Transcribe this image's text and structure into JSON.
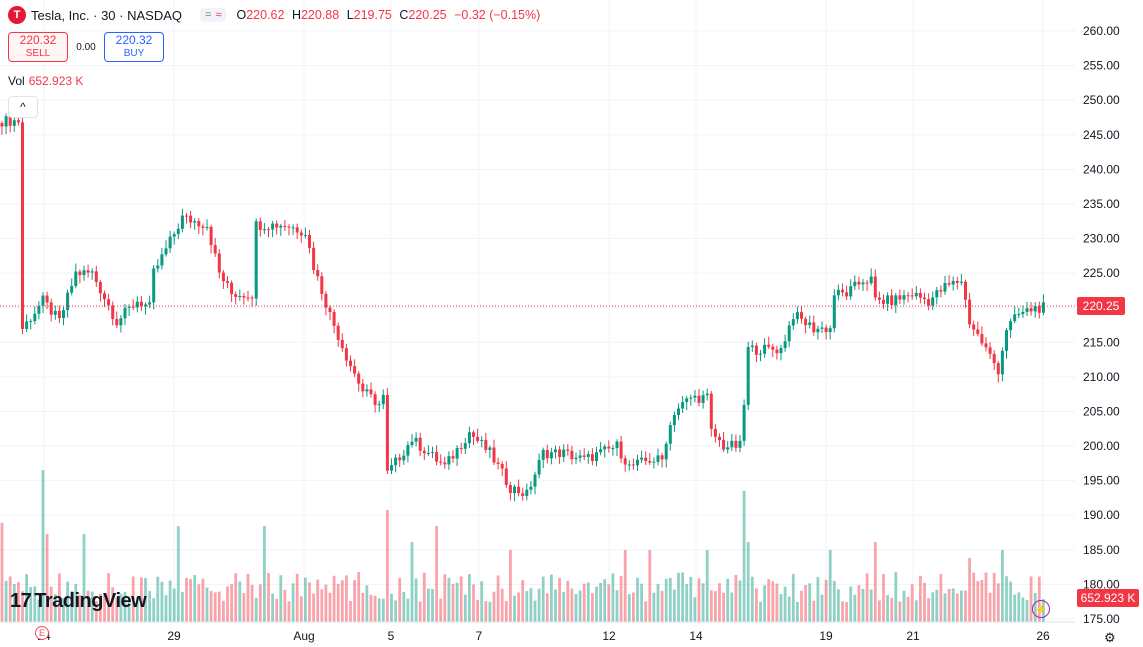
{
  "header": {
    "logo_letter": "T",
    "title": "Tesla, Inc. · 30 · NASDAQ",
    "pill_left": "=",
    "pill_right": "≈",
    "o_label": "O",
    "o_value": "220.62",
    "h_label": "H",
    "h_value": "220.88",
    "l_label": "L",
    "l_value": "219.75",
    "c_label": "C",
    "c_value": "220.25",
    "change": "−0.32 (−0.15%)"
  },
  "trade": {
    "sell_price": "220.32",
    "sell_label": "SELL",
    "spread": "0.00",
    "buy_price": "220.32",
    "buy_label": "BUY"
  },
  "volume_legend": {
    "label": "Vol",
    "value": "652.923 K"
  },
  "collapse_icon": "^",
  "brand": {
    "mark": "17",
    "name": "TradingView"
  },
  "earnings_marker": "E",
  "colors": {
    "up": "#089981",
    "down": "#f23645",
    "grid": "#f0f3fa",
    "last_price_line": "#f23645"
  },
  "chart_data": {
    "type": "candlestick",
    "symbol": "Tesla, Inc.",
    "interval": "30",
    "exchange": "NASDAQ",
    "y_range": [
      175,
      262
    ],
    "y_ticks": [
      "260.00",
      "255.00",
      "250.00",
      "245.00",
      "240.00",
      "235.00",
      "230.00",
      "225.00",
      "220.00",
      "215.00",
      "210.00",
      "205.00",
      "200.00",
      "195.00",
      "190.00",
      "185.00",
      "180.00",
      "175.00"
    ],
    "x_ticks": [
      "24",
      "29",
      "Aug",
      "5",
      "7",
      "12",
      "14",
      "19",
      "21",
      "26"
    ],
    "last_price": "220.25",
    "last_volume": "652.923 K",
    "price_keypoints": [
      [
        0,
        247
      ],
      [
        3,
        247
      ],
      [
        4,
        247
      ],
      [
        5,
        217
      ],
      [
        10,
        221
      ],
      [
        14,
        218
      ],
      [
        18,
        225
      ],
      [
        22,
        225
      ],
      [
        28,
        218
      ],
      [
        33,
        221
      ],
      [
        36,
        220
      ],
      [
        37,
        225
      ],
      [
        44,
        233
      ],
      [
        50,
        232
      ],
      [
        53,
        225
      ],
      [
        56,
        222
      ],
      [
        61,
        222
      ],
      [
        62,
        232
      ],
      [
        69,
        232
      ],
      [
        74,
        231
      ],
      [
        76,
        226
      ],
      [
        80,
        219
      ],
      [
        84,
        213
      ],
      [
        88,
        208
      ],
      [
        92,
        206
      ],
      [
        93,
        207
      ],
      [
        94,
        196
      ],
      [
        100,
        201
      ],
      [
        104,
        199
      ],
      [
        108,
        197
      ],
      [
        114,
        202
      ],
      [
        119,
        199
      ],
      [
        124,
        194
      ],
      [
        128,
        193
      ],
      [
        132,
        199
      ],
      [
        137,
        199
      ],
      [
        142,
        198
      ],
      [
        146,
        199
      ],
      [
        150,
        200
      ],
      [
        153,
        197
      ],
      [
        158,
        198
      ],
      [
        161,
        198
      ],
      [
        162,
        201
      ],
      [
        164,
        205
      ],
      [
        168,
        207
      ],
      [
        172,
        207
      ],
      [
        173,
        202
      ],
      [
        176,
        200
      ],
      [
        180,
        200
      ],
      [
        181,
        206
      ],
      [
        182,
        214
      ],
      [
        186,
        214
      ],
      [
        190,
        214
      ],
      [
        193,
        219
      ],
      [
        198,
        217
      ],
      [
        202,
        217
      ],
      [
        203,
        222
      ],
      [
        206,
        222
      ],
      [
        210,
        224
      ],
      [
        212,
        224
      ],
      [
        213,
        221
      ],
      [
        217,
        221
      ],
      [
        222,
        222
      ],
      [
        226,
        221
      ],
      [
        230,
        223
      ],
      [
        234,
        224
      ],
      [
        236,
        218
      ],
      [
        240,
        214
      ],
      [
        243,
        211
      ],
      [
        245,
        217
      ],
      [
        248,
        219
      ],
      [
        252,
        220
      ],
      [
        254,
        220
      ]
    ],
    "volume_spikes": [
      [
        0,
        0.62
      ],
      [
        10,
        0.95
      ],
      [
        11,
        0.55
      ],
      [
        20,
        0.55
      ],
      [
        43,
        0.6
      ],
      [
        64,
        0.6
      ],
      [
        94,
        0.7
      ],
      [
        100,
        0.5
      ],
      [
        106,
        0.6
      ],
      [
        124,
        0.45
      ],
      [
        152,
        0.45
      ],
      [
        158,
        0.45
      ],
      [
        172,
        0.45
      ],
      [
        181,
        0.82
      ],
      [
        182,
        0.5
      ],
      [
        202,
        0.45
      ],
      [
        213,
        0.5
      ],
      [
        236,
        0.4
      ],
      [
        244,
        0.45
      ]
    ]
  }
}
